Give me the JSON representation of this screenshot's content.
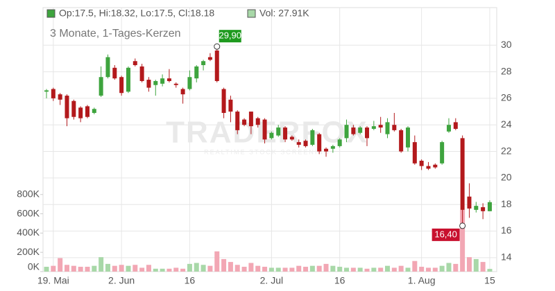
{
  "chart_data": {
    "type": "candlestick",
    "subtitle": "3 Monate, 1-Tages-Kerzen",
    "legend": {
      "price": "Op:17.5, Hi:18.32, Lo:17.5, Cl:18.18",
      "volume": "Vol: 27.91K"
    },
    "watermark": {
      "brand": "TRADERFOX",
      "tagline": "REALTIME STOCK SCREENING"
    },
    "annotations": {
      "high": "29,90",
      "low": "16,40"
    },
    "categories": [
      null,
      "19. Mai",
      null,
      null,
      null,
      null,
      null,
      null,
      null,
      null,
      null,
      "2. Jun",
      null,
      null,
      null,
      null,
      null,
      null,
      null,
      null,
      null,
      "16",
      null,
      null,
      null,
      null,
      null,
      null,
      null,
      null,
      null,
      null,
      null,
      "2. Jul",
      null,
      null,
      null,
      null,
      null,
      null,
      null,
      null,
      null,
      "16",
      null,
      null,
      null,
      null,
      null,
      null,
      null,
      null,
      null,
      null,
      null,
      "1. Aug",
      null,
      null,
      null,
      null,
      null,
      null,
      null,
      null,
      null,
      "15"
    ],
    "open": [
      26.5,
      26.7,
      26.3,
      26.2,
      25.8,
      25.3,
      25.4,
      24.9,
      26.2,
      27.6,
      28.3,
      27.6,
      26.5,
      28.8,
      28.4,
      27.4,
      27.0,
      27.1,
      27.5,
      27.1,
      26.7,
      26.7,
      27.5,
      28.5,
      29.1,
      29.6,
      26.7,
      25.9,
      25.0,
      24.4,
      25.0,
      24.5,
      24.4,
      23.0,
      23.2,
      23.8,
      23.1,
      22.7,
      22.8,
      22.5,
      23.3,
      22.2,
      22.2,
      22.4,
      23.0,
      23.8,
      23.4,
      23.8,
      23.7,
      24.0,
      23.3,
      24.0,
      23.6,
      22.3,
      22.7,
      21.3,
      20.9,
      21.0,
      21.1,
      23.5,
      24.2,
      23.0,
      18.6,
      17.6,
      17.8,
      17.5
    ],
    "high": [
      26.7,
      26.8,
      26.4,
      26.3,
      25.9,
      25.4,
      25.5,
      25.3,
      28.4,
      29.3,
      28.5,
      27.7,
      28.4,
      29.0,
      28.6,
      27.6,
      27.4,
      27.8,
      28.2,
      27.2,
      26.8,
      28.1,
      28.5,
      28.9,
      29.4,
      29.9,
      26.8,
      26.2,
      25.1,
      24.5,
      25.0,
      24.6,
      24.5,
      23.5,
      24.0,
      23.9,
      23.2,
      22.9,
      22.9,
      23.7,
      23.4,
      22.3,
      22.5,
      23.0,
      24.4,
      24.0,
      23.9,
      23.9,
      24.3,
      24.6,
      24.5,
      24.9,
      23.7,
      23.9,
      23.2,
      21.4,
      21.2,
      21.1,
      22.8,
      24.5,
      24.5,
      23.2,
      19.6,
      18.2,
      18.1,
      18.32
    ],
    "low": [
      26.0,
      25.8,
      25.5,
      23.9,
      24.4,
      24.2,
      24.5,
      24.8,
      26.1,
      27.5,
      27.4,
      26.2,
      26.4,
      28.4,
      27.2,
      26.5,
      26.2,
      26.9,
      27.2,
      26.8,
      25.6,
      26.6,
      27.2,
      28.1,
      28.8,
      27.2,
      24.5,
      24.2,
      23.3,
      23.9,
      23.3,
      23.8,
      22.6,
      22.9,
      23.1,
      22.7,
      22.8,
      22.3,
      22.3,
      22.4,
      21.8,
      21.6,
      21.9,
      22.3,
      22.7,
      23.2,
      23.3,
      22.4,
      23.6,
      23.4,
      23.0,
      23.5,
      21.9,
      22.0,
      21.0,
      20.6,
      20.6,
      20.7,
      21.0,
      23.4,
      23.6,
      16.4,
      17.0,
      17.4,
      16.9,
      17.5
    ],
    "close": [
      26.6,
      26.0,
      25.9,
      24.5,
      24.6,
      24.5,
      24.6,
      25.2,
      27.6,
      29.1,
      27.5,
      26.4,
      28.3,
      28.5,
      27.3,
      26.8,
      27.3,
      27.5,
      27.3,
      27.0,
      26.3,
      27.6,
      28.4,
      28.8,
      28.9,
      27.3,
      24.9,
      25.0,
      23.6,
      24.0,
      23.9,
      24.0,
      22.9,
      23.4,
      23.8,
      22.9,
      22.9,
      22.5,
      22.4,
      23.6,
      22.0,
      22.0,
      22.4,
      22.9,
      24.0,
      23.3,
      23.8,
      23.0,
      23.9,
      23.8,
      24.2,
      23.6,
      22.0,
      23.8,
      21.1,
      20.9,
      20.7,
      20.8,
      22.7,
      24.0,
      23.7,
      17.6,
      17.7,
      17.9,
      17.5,
      18.18
    ],
    "volume": [
      50,
      60,
      140,
      70,
      60,
      50,
      50,
      60,
      150,
      80,
      60,
      70,
      60,
      70,
      40,
      70,
      30,
      30,
      30,
      40,
      30,
      80,
      90,
      70,
      60,
      210,
      130,
      100,
      70,
      50,
      90,
      60,
      50,
      40,
      40,
      40,
      40,
      60,
      50,
      60,
      60,
      80,
      60,
      50,
      40,
      40,
      40,
      30,
      40,
      40,
      60,
      40,
      60,
      40,
      110,
      50,
      40,
      40,
      60,
      90,
      80,
      640,
      150,
      130,
      100,
      27.91
    ],
    "up_color": "#3ea43e",
    "down_color": "#b3191c",
    "volume_up_color": "#a8d8a8",
    "volume_down_color": "#f2a7b4",
    "ylim": [
      12.95,
      32.83
    ],
    "yticks": [
      14,
      16,
      18,
      20,
      22,
      24,
      26,
      28,
      30
    ],
    "y2lim": [
      0,
      2740
    ],
    "y2ticks": [
      {
        "value": 0,
        "label": "0K"
      },
      {
        "value": 200,
        "label": "200K"
      },
      {
        "value": 400,
        "label": "400K"
      },
      {
        "value": 600,
        "label": "600K"
      },
      {
        "value": 800,
        "label": "800K"
      }
    ],
    "grid": true
  }
}
